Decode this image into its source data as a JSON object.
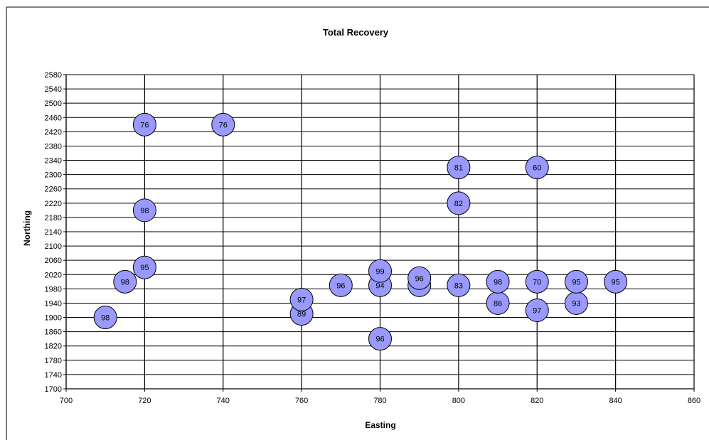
{
  "chart_data": {
    "type": "scatter",
    "title": "Total Recovery",
    "xlabel": "Easting",
    "ylabel": "Northing",
    "xlim": [
      700,
      860
    ],
    "ylim": [
      1700,
      2580
    ],
    "x_ticks": [
      700,
      720,
      740,
      760,
      780,
      800,
      820,
      840,
      860
    ],
    "y_ticks": [
      1700,
      1740,
      1780,
      1820,
      1860,
      1900,
      1940,
      1980,
      2020,
      2060,
      2100,
      2140,
      2180,
      2220,
      2260,
      2300,
      2340,
      2380,
      2420,
      2460,
      2500,
      2540,
      2580
    ],
    "grid": true,
    "legend": false,
    "marker_color": "#9999ff",
    "marker_edge_color": "#000000",
    "points": [
      {
        "x": 710,
        "y": 1900,
        "label": "98"
      },
      {
        "x": 715,
        "y": 2000,
        "label": "98"
      },
      {
        "x": 720,
        "y": 2040,
        "label": "95"
      },
      {
        "x": 720,
        "y": 2200,
        "label": "98"
      },
      {
        "x": 720,
        "y": 2440,
        "label": "76"
      },
      {
        "x": 740,
        "y": 2440,
        "label": "76"
      },
      {
        "x": 760,
        "y": 1910,
        "label": "89"
      },
      {
        "x": 760,
        "y": 1950,
        "label": "97"
      },
      {
        "x": 770,
        "y": 1990,
        "label": "96"
      },
      {
        "x": 780,
        "y": 1840,
        "label": "96"
      },
      {
        "x": 780,
        "y": 1990,
        "label": "94"
      },
      {
        "x": 780,
        "y": 2030,
        "label": "99"
      },
      {
        "x": 790,
        "y": 1990,
        "label": "85"
      },
      {
        "x": 790,
        "y": 2010,
        "label": "96"
      },
      {
        "x": 800,
        "y": 1990,
        "label": "83"
      },
      {
        "x": 800,
        "y": 2220,
        "label": "82"
      },
      {
        "x": 800,
        "y": 2320,
        "label": "81"
      },
      {
        "x": 810,
        "y": 1940,
        "label": "86"
      },
      {
        "x": 810,
        "y": 2000,
        "label": "98"
      },
      {
        "x": 820,
        "y": 1920,
        "label": "97"
      },
      {
        "x": 820,
        "y": 2000,
        "label": "70"
      },
      {
        "x": 820,
        "y": 2320,
        "label": "60"
      },
      {
        "x": 830,
        "y": 1940,
        "label": "93"
      },
      {
        "x": 830,
        "y": 2000,
        "label": "95"
      },
      {
        "x": 840,
        "y": 2000,
        "label": "95"
      }
    ]
  }
}
